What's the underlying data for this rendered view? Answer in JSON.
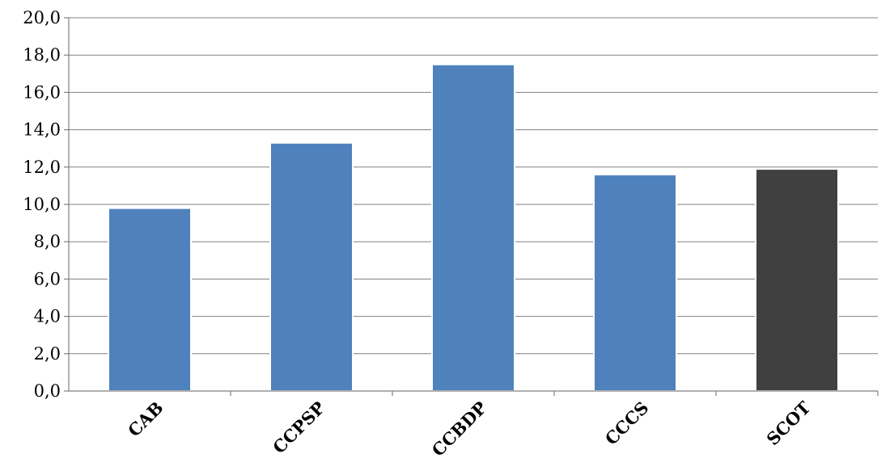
{
  "chart_data": {
    "type": "bar",
    "title": "",
    "xlabel": "",
    "ylabel": "",
    "categories": [
      "CAB",
      "CCPSP",
      "CCBDP",
      "CCCS",
      "SCOT"
    ],
    "values": [
      9.8,
      13.3,
      17.5,
      11.6,
      11.9
    ],
    "bar_colors": [
      "#4f81bd",
      "#4f81bd",
      "#4f81bd",
      "#4f81bd",
      "#404040"
    ],
    "ylim": [
      0,
      20
    ],
    "y_ticks": [
      "0,0",
      "2,0",
      "4,0",
      "6,0",
      "8,0",
      "10,0",
      "12,0",
      "14,0",
      "16,0",
      "18,0",
      "20,0"
    ],
    "grid": true,
    "legend": "none"
  }
}
